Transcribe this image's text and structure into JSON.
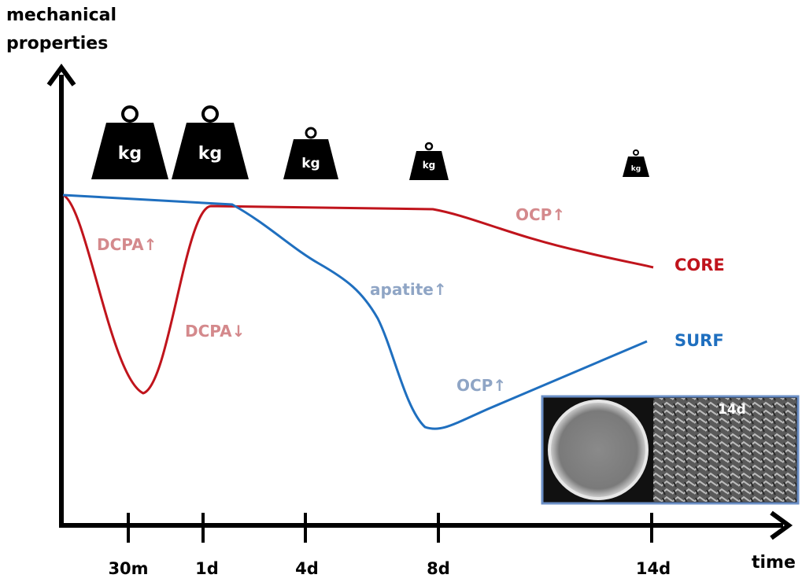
{
  "axes": {
    "y_label": [
      "mechanical",
      "properties"
    ],
    "x_label": "time",
    "ticks": [
      "30m",
      "1d",
      "4d",
      "8d",
      "14d"
    ]
  },
  "weights": [
    "kg",
    "kg",
    "kg",
    "kg",
    "kg"
  ],
  "annotations": {
    "dcpa_up": "DCPA↑",
    "dcpa_down": "DCPA↓",
    "ocp_core": "OCP↑",
    "apatite_up": "apatite↑",
    "ocp_surf": "OCP↑"
  },
  "curves": {
    "core": "CORE",
    "surf": "SURF"
  },
  "inset": {
    "label": "14d"
  }
}
